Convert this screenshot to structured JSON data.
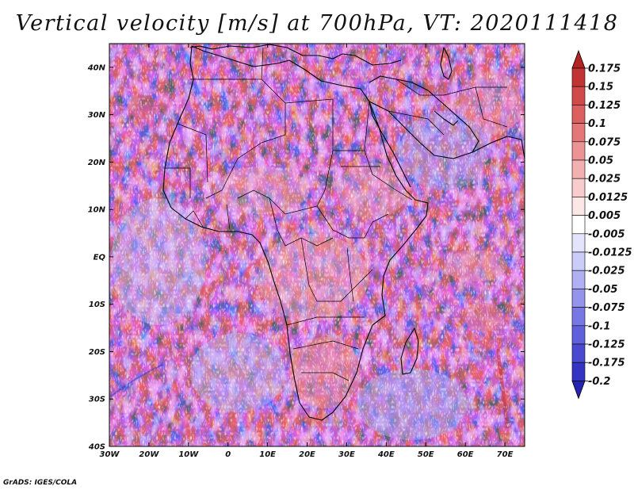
{
  "title": "Vertical velocity [m/s] at 700hPa, VT: 2020111418",
  "credit": "GrADS: IGES/COLA",
  "map": {
    "lon_range": [
      -30,
      75
    ],
    "lat_range": [
      -40,
      45
    ],
    "lon_ticks": [
      {
        "value": -30,
        "label": "30W"
      },
      {
        "value": -20,
        "label": "20W"
      },
      {
        "value": -10,
        "label": "10W"
      },
      {
        "value": 0,
        "label": "0"
      },
      {
        "value": 10,
        "label": "10E"
      },
      {
        "value": 20,
        "label": "20E"
      },
      {
        "value": 30,
        "label": "30E"
      },
      {
        "value": 40,
        "label": "40E"
      },
      {
        "value": 50,
        "label": "50E"
      },
      {
        "value": 60,
        "label": "60E"
      },
      {
        "value": 70,
        "label": "70E"
      }
    ],
    "lat_ticks": [
      {
        "value": 40,
        "label": "40N"
      },
      {
        "value": 30,
        "label": "30N"
      },
      {
        "value": 20,
        "label": "20N"
      },
      {
        "value": 10,
        "label": "10N"
      },
      {
        "value": 0,
        "label": "EQ"
      },
      {
        "value": -10,
        "label": "10S"
      },
      {
        "value": -20,
        "label": "20S"
      },
      {
        "value": -30,
        "label": "30S"
      },
      {
        "value": -40,
        "label": "40S"
      }
    ]
  },
  "colorbar": {
    "labels": [
      "0.175",
      "0.15",
      "0.125",
      "0.1",
      "0.075",
      "0.05",
      "0.025",
      "0.0125",
      "0.005",
      "-0.005",
      "-0.0125",
      "-0.025",
      "-0.05",
      "-0.075",
      "-0.1",
      "-0.125",
      "-0.175",
      "-0.2"
    ],
    "colors": [
      "#b22424",
      "#c23434",
      "#d04a4a",
      "#dc6060",
      "#e47878",
      "#ec9494",
      "#f2b0b0",
      "#f8cccc",
      "#fce6e6",
      "#ffffff",
      "#e4e4fc",
      "#ccccf8",
      "#b0b0f2",
      "#9494ec",
      "#7878e4",
      "#6060dc",
      "#4a4ad0",
      "#3434c2",
      "#2424b2"
    ]
  }
}
